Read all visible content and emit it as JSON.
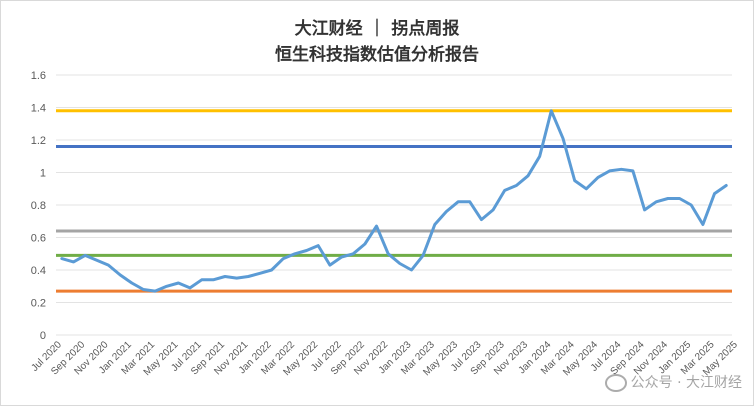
{
  "title": {
    "line1": "大江财经 ｜ 拐点周报",
    "line2": "恒生科技指数估值分析报告"
  },
  "watermark": "公众号 · 大江财经",
  "chart_data": {
    "type": "line",
    "ylim": [
      0,
      1.6
    ],
    "yticks": [
      "0",
      "0.2",
      "0.4",
      "0.6",
      "0.8",
      "1",
      "1.2",
      "1.4",
      "1.6"
    ],
    "xtick_labels": [
      "Jul 2020",
      "Sep 2020",
      "Nov 2020",
      "Jan 2021",
      "Mar 2021",
      "May 2021",
      "Jul 2021",
      "Sep 2021",
      "Nov 2021",
      "Jan 2022",
      "Mar 2022",
      "May 2022",
      "Jul 2022",
      "Sep 2022",
      "Nov 2022",
      "Jan 2023",
      "Mar 2023",
      "May 2023",
      "Jul 2023",
      "Sep 2023",
      "Nov 2023",
      "Jan 2024",
      "Mar 2024",
      "May 2024",
      "Jul 2024",
      "Sep 2024",
      "Nov 2024",
      "Jan 2025",
      "Mar 2025",
      "May 2025"
    ],
    "grid": true,
    "series": [
      {
        "color": "#5B9BD5",
        "values": [
          0.47,
          0.45,
          0.49,
          0.46,
          0.43,
          0.37,
          0.32,
          0.28,
          0.27,
          0.3,
          0.32,
          0.29,
          0.34,
          0.34,
          0.36,
          0.35,
          0.36,
          0.38,
          0.4,
          0.47,
          0.5,
          0.52,
          0.55,
          0.43,
          0.48,
          0.5,
          0.56,
          0.67,
          0.5,
          0.44,
          0.4,
          0.49,
          0.68,
          0.76,
          0.82,
          0.82,
          0.71,
          0.77,
          0.89,
          0.92,
          0.98,
          1.1,
          1.38,
          1.21,
          0.95,
          0.9,
          0.97,
          1.01,
          1.02,
          1.01,
          0.77,
          0.82,
          0.84,
          0.84,
          0.8,
          0.68,
          0.87,
          0.92
        ]
      }
    ],
    "reference_lines": [
      {
        "value": 1.38,
        "color": "#FFC000"
      },
      {
        "value": 1.16,
        "color": "#4472C4"
      },
      {
        "value": 0.64,
        "color": "#A5A5A5"
      },
      {
        "value": 0.49,
        "color": "#70AD47"
      },
      {
        "value": 0.27,
        "color": "#ED7D31"
      }
    ]
  }
}
